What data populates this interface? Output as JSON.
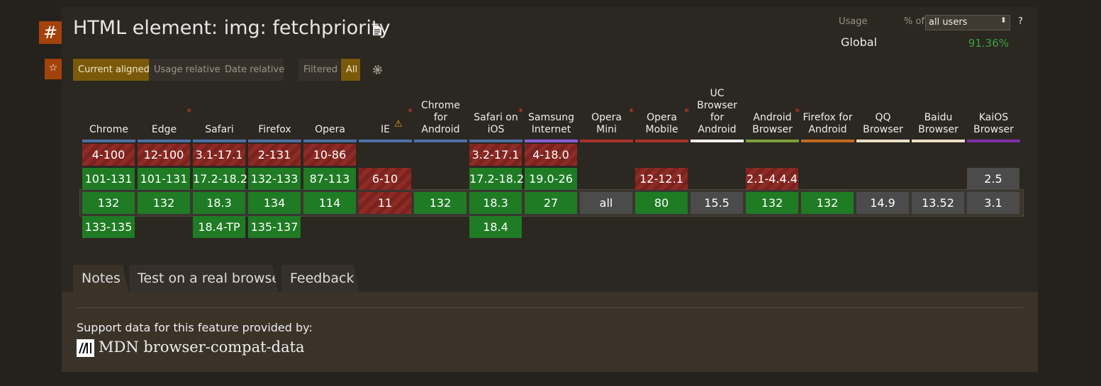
{
  "header": {
    "anchor": "#",
    "title": "HTML element: img: fetchpriority",
    "usage_label": "Usage",
    "percent_of": "% of",
    "user_select": "all users",
    "help": "?",
    "region": "Global",
    "usage_value": "91.36%"
  },
  "controls": {
    "view_modes": [
      "Current aligned",
      "Usage relative",
      "Date relative"
    ],
    "filters": [
      "Filtered",
      "All"
    ]
  },
  "table": {
    "browsers": [
      {
        "name": "Chrome",
        "color": "#4e6fa6",
        "cells": [
          {
            "text": "4-100",
            "support": "no"
          },
          {
            "text": "101-131",
            "support": "yes"
          },
          {
            "text": "132",
            "support": "yes"
          },
          {
            "text": "133-135",
            "support": "yes"
          }
        ]
      },
      {
        "name": "Edge",
        "color": "#4e6fa6",
        "note": true,
        "cells": [
          {
            "text": "12-100",
            "support": "no"
          },
          {
            "text": "101-131",
            "support": "yes"
          },
          {
            "text": "132",
            "support": "yes"
          },
          null
        ]
      },
      {
        "name": "Safari",
        "color": "#4e6fa6",
        "cells": [
          {
            "text": "3.1-17.1",
            "support": "no"
          },
          {
            "text": "17.2-18.2",
            "support": "yes"
          },
          {
            "text": "18.3",
            "support": "yes"
          },
          {
            "text": "18.4-TP",
            "support": "yes"
          }
        ]
      },
      {
        "name": "Firefox",
        "color": "#4e6fa6",
        "cells": [
          {
            "text": "2-131",
            "support": "no"
          },
          {
            "text": "132-133",
            "support": "yes"
          },
          {
            "text": "134",
            "support": "yes"
          },
          {
            "text": "135-137",
            "support": "yes"
          }
        ]
      },
      {
        "name": "Opera",
        "color": "#4e6fa6",
        "cells": [
          {
            "text": "10-86",
            "support": "no"
          },
          {
            "text": "87-113",
            "support": "yes"
          },
          {
            "text": "114",
            "support": "yes"
          },
          null
        ]
      },
      {
        "name": "IE",
        "color": "#4e6fa6",
        "note": true,
        "warning": true,
        "cells": [
          null,
          {
            "text": "6-10",
            "support": "no"
          },
          {
            "text": "11",
            "support": "no"
          },
          null
        ]
      },
      {
        "name": "Chrome\nfor\nAndroid",
        "color": "#4e6fa6",
        "cells": [
          null,
          null,
          {
            "text": "132",
            "support": "yes"
          },
          null
        ]
      },
      {
        "name": "Safari on\niOS",
        "color": "#4e6fa6",
        "note": true,
        "cells": [
          {
            "text": "3.2-17.1",
            "support": "no"
          },
          {
            "text": "17.2-18.2",
            "support": "yes"
          },
          {
            "text": "18.3",
            "support": "yes"
          },
          {
            "text": "18.4",
            "support": "yes"
          }
        ]
      },
      {
        "name": "Samsung\nInternet",
        "color": "#8a5fd6",
        "cells": [
          {
            "text": "4-18.0",
            "support": "no"
          },
          {
            "text": "19.0-26",
            "support": "yes"
          },
          {
            "text": "27",
            "support": "yes"
          },
          null
        ]
      },
      {
        "name": "Opera Mini",
        "color": "#a8322c",
        "note": true,
        "cells": [
          null,
          null,
          {
            "text": "all",
            "support": "unknown"
          },
          null
        ]
      },
      {
        "name": "Opera\nMobile",
        "color": "#a8322c",
        "note": true,
        "cells": [
          null,
          {
            "text": "12-12.1",
            "support": "no"
          },
          {
            "text": "80",
            "support": "yes"
          },
          null
        ]
      },
      {
        "name": "UC\nBrowser\nfor\nAndroid",
        "color": "#eeeeee",
        "cells": [
          null,
          null,
          {
            "text": "15.5",
            "support": "unknown"
          },
          null
        ]
      },
      {
        "name": "Android\nBrowser",
        "color": "#7e9c3a",
        "note": true,
        "cells": [
          null,
          {
            "text": "2.1-4.4.4",
            "support": "no"
          },
          {
            "text": "132",
            "support": "yes"
          },
          null
        ]
      },
      {
        "name": "Firefox for\nAndroid",
        "color": "#c26a22",
        "cells": [
          null,
          null,
          {
            "text": "132",
            "support": "yes"
          },
          null
        ]
      },
      {
        "name": "QQ\nBrowser",
        "color": "#eadfc6",
        "cells": [
          null,
          null,
          {
            "text": "14.9",
            "support": "unknown"
          },
          null
        ]
      },
      {
        "name": "Baidu\nBrowser",
        "color": "#eadfc6",
        "cells": [
          null,
          null,
          {
            "text": "13.52",
            "support": "unknown"
          },
          null
        ]
      },
      {
        "name": "KaiOS\nBrowser",
        "color": "#7b2fa8",
        "cells": [
          null,
          {
            "text": "2.5",
            "support": "unknown"
          },
          {
            "text": "3.1",
            "support": "unknown"
          },
          null
        ]
      }
    ]
  },
  "tabs": [
    "Notes",
    "Test on a real browser",
    "Feedback"
  ],
  "notes": {
    "text": "Support data for this feature provided by:",
    "source": "MDN browser-compat-data"
  }
}
